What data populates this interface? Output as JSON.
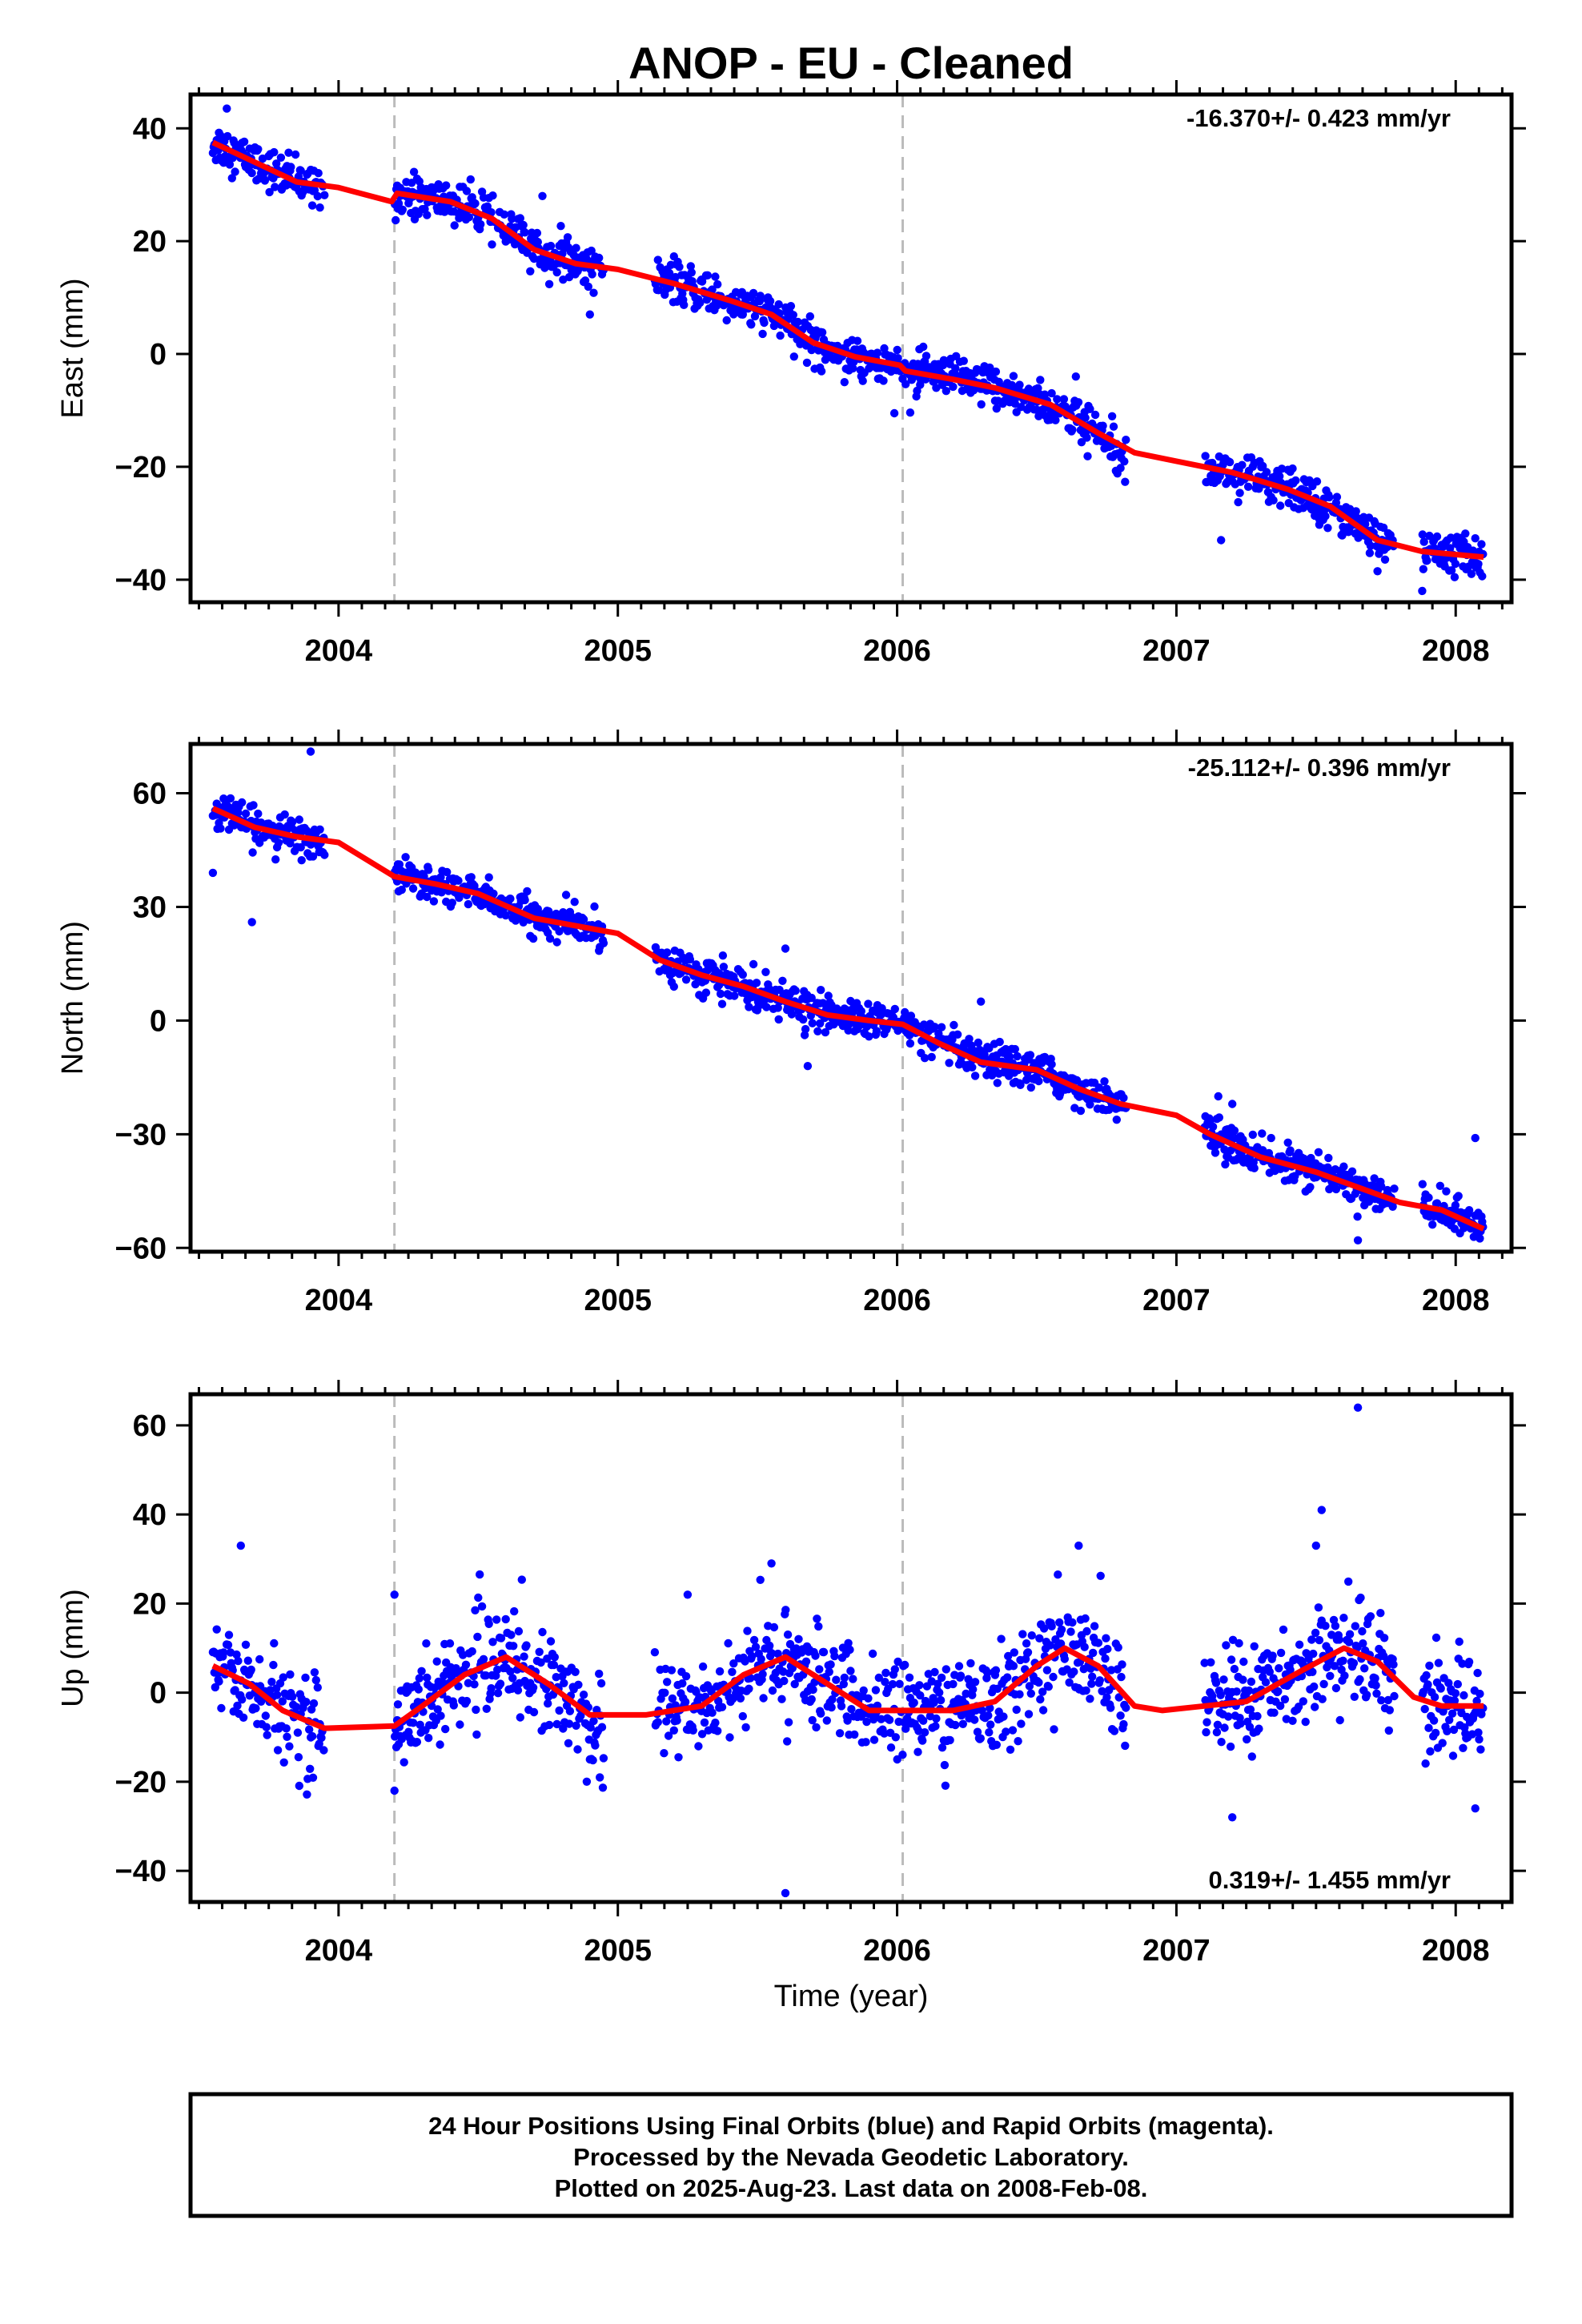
{
  "title": "ANOP  - EU - Cleaned",
  "colors": {
    "points": "#0000ff",
    "fit": "#ff0000",
    "break_lines": "#bbbbbb",
    "frame": "#000000"
  },
  "footer": {
    "line1": "24 Hour Positions Using Final Orbits (blue) and Rapid Orbits (magenta).",
    "line2": "Processed by the Nevada Geodetic Laboratory.",
    "line3": "Plotted on 2025-Aug-23. Last data on 2008-Feb-08."
  },
  "chart_data": [
    {
      "type": "scatter",
      "ylabel": "East (mm)",
      "xlabel": "",
      "rate": "-16.370+/- 0.423 mm/yr",
      "xlim": [
        2003.47,
        2008.2
      ],
      "ylim": [
        -44,
        46
      ],
      "xticks": [
        "2004",
        "2005",
        "2006",
        "2007",
        "2008"
      ],
      "yticks": [
        "40",
        "20",
        "0",
        "−20",
        "−40"
      ],
      "ytick_values": [
        40,
        20,
        0,
        -20,
        -40
      ],
      "break_years": [
        2004.2,
        2006.02
      ],
      "data_start": 2003.55,
      "data_end": 2008.1,
      "gaps": [
        [
          2003.95,
          2004.2
        ],
        [
          2004.95,
          2005.13
        ],
        [
          2006.82,
          2007.1
        ],
        [
          2007.78,
          2007.88
        ]
      ],
      "outliers": [
        [
          2003.6,
          43.5
        ],
        [
          2004.73,
          28
        ],
        [
          2004.9,
          7
        ],
        [
          2005.99,
          -10.5
        ],
        [
          2006.64,
          -4
        ],
        [
          2007.16,
          -33
        ],
        [
          2007.72,
          -38.5
        ],
        [
          2007.88,
          -42
        ]
      ],
      "fit": [
        [
          2003.55,
          37.5
        ],
        [
          2003.7,
          34
        ],
        [
          2003.85,
          30.5
        ],
        [
          2004.0,
          29.5
        ],
        [
          2004.19,
          27
        ],
        [
          2004.21,
          28.5
        ],
        [
          2004.4,
          27
        ],
        [
          2004.55,
          24
        ],
        [
          2004.7,
          18.5
        ],
        [
          2004.85,
          16
        ],
        [
          2005.0,
          15
        ],
        [
          2005.2,
          12.5
        ],
        [
          2005.4,
          9.5
        ],
        [
          2005.55,
          7
        ],
        [
          2005.7,
          2
        ],
        [
          2005.85,
          -0.5
        ],
        [
          2006.01,
          -2
        ],
        [
          2006.03,
          -3
        ],
        [
          2006.2,
          -4.5
        ],
        [
          2006.35,
          -6
        ],
        [
          2006.55,
          -9
        ],
        [
          2006.72,
          -14
        ],
        [
          2006.85,
          -17.5
        ],
        [
          2007.0,
          -19
        ],
        [
          2007.2,
          -21
        ],
        [
          2007.4,
          -24
        ],
        [
          2007.55,
          -27
        ],
        [
          2007.72,
          -33
        ],
        [
          2007.88,
          -35
        ],
        [
          2008.1,
          -36
        ]
      ],
      "scatter_sd": 1.8
    },
    {
      "type": "scatter",
      "ylabel": "North (mm)",
      "xlabel": "",
      "rate": "-25.112+/- 0.396 mm/yr",
      "xlim": [
        2003.47,
        2008.2
      ],
      "ylim": [
        -61,
        73
      ],
      "xticks": [
        "2004",
        "2005",
        "2006",
        "2007",
        "2008"
      ],
      "yticks": [
        "60",
        "30",
        "0",
        "−30",
        "−60"
      ],
      "ytick_values": [
        60,
        30,
        0,
        -30,
        -60
      ],
      "break_years": [
        2004.2,
        2006.02
      ],
      "data_start": 2003.55,
      "data_end": 2008.1,
      "gaps": [
        [
          2003.95,
          2004.2
        ],
        [
          2004.95,
          2005.13
        ],
        [
          2006.82,
          2007.1
        ],
        [
          2007.78,
          2007.88
        ]
      ],
      "outliers": [
        [
          2003.9,
          71
        ],
        [
          2003.55,
          39
        ],
        [
          2003.69,
          26
        ],
        [
          2005.6,
          19
        ],
        [
          2005.68,
          -12
        ],
        [
          2006.3,
          5
        ],
        [
          2007.15,
          -20
        ],
        [
          2007.2,
          -22
        ],
        [
          2008.07,
          -31
        ],
        [
          2007.65,
          -58
        ]
      ],
      "fit": [
        [
          2003.55,
          56
        ],
        [
          2003.7,
          51
        ],
        [
          2003.85,
          48.5
        ],
        [
          2004.0,
          47
        ],
        [
          2004.2,
          38
        ],
        [
          2004.35,
          36
        ],
        [
          2004.5,
          33.5
        ],
        [
          2004.7,
          27
        ],
        [
          2004.85,
          25
        ],
        [
          2005.0,
          23
        ],
        [
          2005.15,
          16
        ],
        [
          2005.3,
          12
        ],
        [
          2005.45,
          9
        ],
        [
          2005.6,
          5
        ],
        [
          2005.75,
          1.5
        ],
        [
          2005.9,
          0
        ],
        [
          2006.02,
          -1
        ],
        [
          2006.15,
          -6
        ],
        [
          2006.3,
          -11
        ],
        [
          2006.5,
          -13
        ],
        [
          2006.65,
          -18
        ],
        [
          2006.8,
          -22
        ],
        [
          2007.0,
          -25
        ],
        [
          2007.12,
          -30
        ],
        [
          2007.3,
          -36
        ],
        [
          2007.5,
          -40
        ],
        [
          2007.65,
          -44
        ],
        [
          2007.8,
          -48
        ],
        [
          2007.95,
          -50
        ],
        [
          2008.1,
          -55
        ]
      ],
      "scatter_sd": 2.3
    },
    {
      "type": "scatter",
      "ylabel": "Up (mm)",
      "xlabel": "Time (year)",
      "rate": "0.319+/- 1.455 mm/yr",
      "xlim": [
        2003.47,
        2008.2
      ],
      "ylim": [
        -47,
        67
      ],
      "xticks": [
        "2004",
        "2005",
        "2006",
        "2007",
        "2008"
      ],
      "yticks": [
        "60",
        "40",
        "20",
        "0",
        "−20",
        "−40"
      ],
      "ytick_values": [
        60,
        40,
        20,
        0,
        -20,
        -40
      ],
      "break_years": [
        2004.2,
        2006.02
      ],
      "data_start": 2003.55,
      "data_end": 2008.1,
      "gaps": [
        [
          2003.95,
          2004.2
        ],
        [
          2004.95,
          2005.13
        ],
        [
          2006.82,
          2007.1
        ],
        [
          2007.78,
          2007.88
        ]
      ],
      "outliers": [
        [
          2003.65,
          33
        ],
        [
          2004.2,
          22
        ],
        [
          2004.2,
          -22
        ],
        [
          2005.25,
          22
        ],
        [
          2005.55,
          29
        ],
        [
          2005.6,
          -45
        ],
        [
          2006.65,
          33
        ],
        [
          2007.5,
          33
        ],
        [
          2007.52,
          41
        ],
        [
          2007.65,
          64
        ],
        [
          2007.2,
          -28
        ],
        [
          2008.07,
          -26
        ]
      ],
      "fit": [
        [
          2003.55,
          6
        ],
        [
          2003.68,
          2
        ],
        [
          2003.8,
          -4
        ],
        [
          2003.95,
          -8
        ],
        [
          2004.2,
          -7.5
        ],
        [
          2004.3,
          -3
        ],
        [
          2004.45,
          4
        ],
        [
          2004.6,
          8
        ],
        [
          2004.75,
          2
        ],
        [
          2004.9,
          -5
        ],
        [
          2005.1,
          -5
        ],
        [
          2005.3,
          -3
        ],
        [
          2005.45,
          4
        ],
        [
          2005.6,
          8
        ],
        [
          2005.75,
          2
        ],
        [
          2005.9,
          -4
        ],
        [
          2006.02,
          -4
        ],
        [
          2006.2,
          -4
        ],
        [
          2006.35,
          -2
        ],
        [
          2006.5,
          6
        ],
        [
          2006.6,
          10
        ],
        [
          2006.72,
          6
        ],
        [
          2006.85,
          -3
        ],
        [
          2006.95,
          -4
        ],
        [
          2007.1,
          -3
        ],
        [
          2007.25,
          -2
        ],
        [
          2007.45,
          5
        ],
        [
          2007.6,
          10
        ],
        [
          2007.72,
          7
        ],
        [
          2007.85,
          -1
        ],
        [
          2007.95,
          -3
        ],
        [
          2008.1,
          -3
        ]
      ],
      "scatter_sd": 5.5
    }
  ]
}
